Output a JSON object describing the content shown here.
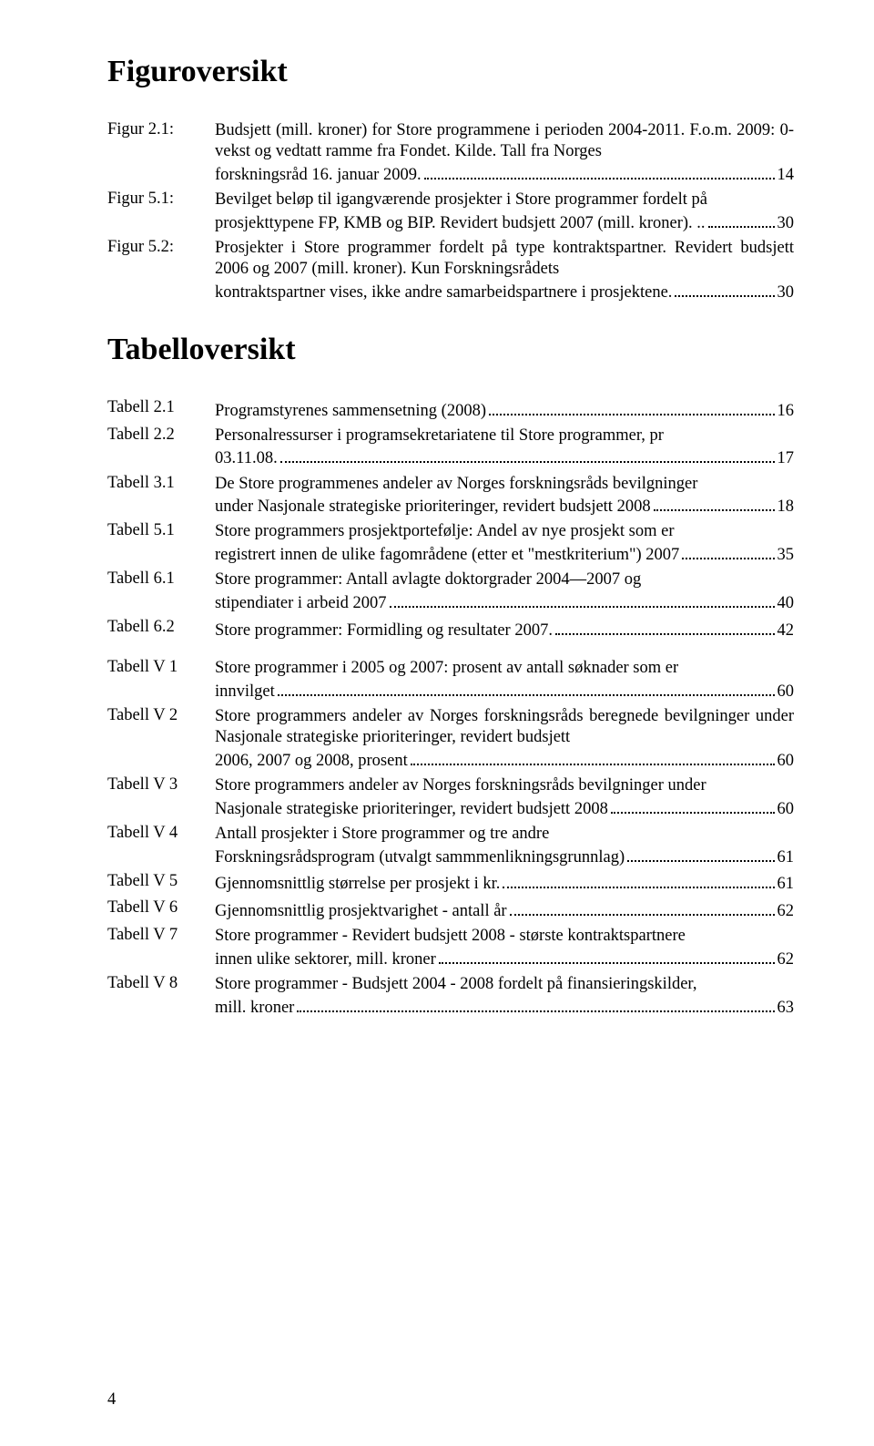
{
  "headings": {
    "figuroversikt": "Figuroversikt",
    "tabelloversikt": "Tabelloversikt"
  },
  "figures": [
    {
      "label": "Figur 2.1:",
      "desc_pre": "Budsjett (mill. kroner) for Store programmene i perioden 2004-2011. F.o.m. 2009: 0-vekst og vedtatt ramme fra Fondet. Kilde. Tall fra Norges",
      "desc_tail": "forskningsråd 16. januar 2009.",
      "page": "14"
    },
    {
      "label": "Figur 5.1:",
      "desc_pre": "Bevilget beløp til igangværende prosjekter i Store programmer fordelt på",
      "desc_tail": "prosjekttypene FP, KMB og BIP. Revidert budsjett 2007 (mill. kroner). ..",
      "page": "30"
    },
    {
      "label": "Figur 5.2:",
      "desc_pre": "Prosjekter i Store programmer fordelt på type kontraktspartner. Revidert budsjett 2006 og 2007 (mill. kroner). Kun Forskningsrådets",
      "desc_tail": "kontraktspartner vises, ikke andre samarbeidspartnere i prosjektene.",
      "page": "30"
    }
  ],
  "tables_a": [
    {
      "label": "Tabell 2.1",
      "desc_pre": "",
      "desc_tail": "Programstyrenes sammensetning (2008)",
      "page": "16"
    },
    {
      "label": "Tabell 2.2",
      "desc_pre": "Personalressurser i programsekretariatene til Store programmer, pr",
      "desc_tail": "03.11.08.",
      "page": "17"
    },
    {
      "label": "Tabell 3.1",
      "desc_pre": "De Store programmenes andeler av Norges forskningsråds bevilgninger",
      "desc_tail": "under Nasjonale strategiske prioriteringer, revidert budsjett 2008",
      "page": "18"
    },
    {
      "label": "Tabell 5.1",
      "desc_pre": "Store programmers prosjektportefølje: Andel av nye prosjekt som er",
      "desc_tail": "registrert innen de ulike fagområdene (etter et \"mestkriterium\") 2007",
      "page": "35"
    },
    {
      "label": "Tabell 6.1",
      "desc_pre": "Store programmer: Antall avlagte doktorgrader 2004—2007 og",
      "desc_tail": "stipendiater i arbeid 2007",
      "page": "40"
    },
    {
      "label": "Tabell 6.2",
      "desc_pre": "",
      "desc_tail": "Store programmer: Formidling og resultater 2007.",
      "page": "42"
    }
  ],
  "tables_b": [
    {
      "label": "Tabell V 1",
      "desc_pre": "Store programmer i 2005 og 2007: prosent av antall søknader som er",
      "desc_tail": "innvilget",
      "page": "60"
    },
    {
      "label": "Tabell V 2",
      "desc_pre": "Store programmers andeler av Norges forskningsråds beregnede bevilgninger under Nasjonale strategiske prioriteringer, revidert budsjett",
      "desc_tail": "2006, 2007 og 2008, prosent",
      "page": "60"
    },
    {
      "label": "Tabell V 3",
      "desc_pre": "Store programmers andeler av Norges forskningsråds bevilgninger under",
      "desc_tail": "Nasjonale strategiske prioriteringer, revidert budsjett 2008",
      "page": "60"
    },
    {
      "label": "Tabell V 4",
      "desc_pre": "Antall prosjekter i Store programmer og tre andre",
      "desc_tail": "Forskningsrådsprogram (utvalgt sammmenlikningsgrunnlag)",
      "page": "61"
    },
    {
      "label": "Tabell V 5",
      "desc_pre": "",
      "desc_tail": "Gjennomsnittlig størrelse per prosjekt i kr.",
      "page": "61"
    },
    {
      "label": "Tabell V 6",
      "desc_pre": "",
      "desc_tail": "Gjennomsnittlig prosjektvarighet - antall år",
      "page": "62"
    },
    {
      "label": "Tabell V 7",
      "desc_pre": "Store programmer - Revidert budsjett 2008 - største kontraktspartnere",
      "desc_tail": "innen ulike sektorer, mill. kroner",
      "page": "62"
    },
    {
      "label": "Tabell V 8",
      "desc_pre": "Store programmer - Budsjett 2004 - 2008 fordelt på finansieringskilder,",
      "desc_tail": "mill. kroner",
      "page": "63"
    }
  ],
  "page_number": "4"
}
